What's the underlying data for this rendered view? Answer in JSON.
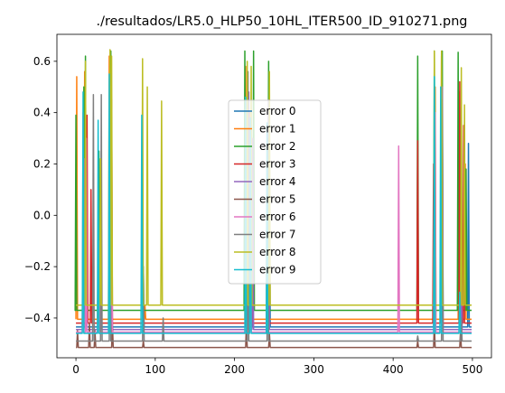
{
  "chart_data": {
    "type": "line",
    "title": "./resultados/LR5.0_HLP50_10HL_ITER500_ID_910271.png",
    "xlabel": "",
    "ylabel": "",
    "xlim": [
      -24,
      524
    ],
    "ylim": [
      -0.555,
      0.705
    ],
    "xticks": [
      0,
      100,
      200,
      300,
      400,
      500
    ],
    "yticks": [
      -0.4,
      -0.2,
      0.0,
      0.2,
      0.4,
      0.6
    ],
    "xtick_labels": [
      "0",
      "100",
      "200",
      "300",
      "400",
      "500"
    ],
    "ytick_labels": [
      "−0.4",
      "−0.2",
      "0.0",
      "0.2",
      "0.4",
      "0.6"
    ],
    "grid": false,
    "legend": "center",
    "series": [
      {
        "name": "error 0",
        "color": "#1f77b4",
        "baseline": -0.435,
        "spikes": [
          [
            9,
            0.02
          ],
          [
            13,
            -0.1
          ],
          [
            30,
            -0.15
          ],
          [
            44,
            0.3
          ],
          [
            85,
            -0.2
          ],
          [
            215,
            0.05
          ],
          [
            222,
            -0.3
          ],
          [
            244,
            0.1
          ],
          [
            452,
            -0.1
          ],
          [
            462,
            0.0
          ],
          [
            485,
            -0.2
          ],
          [
            495,
            0.28
          ]
        ]
      },
      {
        "name": "error 1",
        "color": "#ff7f0e",
        "baseline": -0.405,
        "spikes": [
          [
            1,
            0.54
          ],
          [
            11,
            0.56
          ],
          [
            28,
            -0.2
          ],
          [
            42,
            0.62
          ],
          [
            87,
            -0.35
          ],
          [
            214,
            0.58
          ],
          [
            219,
            0.4
          ],
          [
            241,
            0.2
          ],
          [
            453,
            0.5
          ],
          [
            461,
            0.62
          ],
          [
            483,
            0.48
          ],
          [
            491,
            0.2
          ]
        ]
      },
      {
        "name": "error 2",
        "color": "#2ca02c",
        "baseline": -0.37,
        "spikes": [
          [
            0,
            0.39
          ],
          [
            10,
            0.5
          ],
          [
            12,
            0.62
          ],
          [
            29,
            0.25
          ],
          [
            44,
            0.64
          ],
          [
            213,
            0.64
          ],
          [
            224,
            0.64
          ],
          [
            243,
            0.6
          ],
          [
            431,
            0.62
          ],
          [
            452,
            0.64
          ],
          [
            462,
            0.64
          ],
          [
            482,
            0.635
          ],
          [
            492,
            0.18
          ]
        ]
      },
      {
        "name": "error 3",
        "color": "#d62728",
        "baseline": -0.42,
        "spikes": [
          [
            14,
            0.39
          ],
          [
            19,
            0.1
          ],
          [
            30,
            -0.1
          ],
          [
            45,
            0.45
          ],
          [
            216,
            0.42
          ],
          [
            222,
            0.2
          ],
          [
            243,
            0.1
          ],
          [
            431,
            0.29
          ],
          [
            451,
            0.2
          ],
          [
            461,
            0.45
          ],
          [
            484,
            0.52
          ],
          [
            489,
            0.35
          ]
        ]
      },
      {
        "name": "error 4",
        "color": "#9467bd",
        "baseline": -0.445,
        "spikes": [
          [
            11,
            0.22
          ],
          [
            31,
            -0.2
          ],
          [
            44,
            0.5
          ],
          [
            218,
            0.48
          ],
          [
            223,
            0.3
          ],
          [
            243,
            0.45
          ],
          [
            462,
            0.5
          ],
          [
            486,
            0.42
          ]
        ]
      },
      {
        "name": "error 5",
        "color": "#8c564b",
        "baseline": -0.515,
        "spikes": [
          [
            2,
            -0.45
          ],
          [
            17,
            -0.42
          ],
          [
            24,
            -0.45
          ],
          [
            46,
            -0.42
          ],
          [
            85,
            -0.49
          ],
          [
            215,
            -0.42
          ],
          [
            244,
            -0.46
          ],
          [
            431,
            -0.49
          ],
          [
            452,
            -0.42
          ],
          [
            485,
            -0.45
          ]
        ]
      },
      {
        "name": "error 6",
        "color": "#e377c2",
        "baseline": -0.455,
        "spikes": [
          [
            9,
            0.4
          ],
          [
            13,
            0.3
          ],
          [
            30,
            -0.1
          ],
          [
            45,
            0.2
          ],
          [
            220,
            0.3
          ],
          [
            407,
            0.27
          ],
          [
            453,
            0.4
          ],
          [
            462,
            0.3
          ]
        ]
      },
      {
        "name": "error 7",
        "color": "#7f7f7f",
        "baseline": -0.49,
        "spikes": [
          [
            22,
            0.47
          ],
          [
            32,
            0.47
          ],
          [
            43,
            0.4
          ],
          [
            85,
            -0.2
          ],
          [
            110,
            -0.4
          ],
          [
            217,
            0.56
          ],
          [
            242,
            0.3
          ],
          [
            431,
            -0.47
          ],
          [
            462,
            0.45
          ],
          [
            486,
            -0.4
          ]
        ]
      },
      {
        "name": "error 8",
        "color": "#bcbd22",
        "baseline": -0.35,
        "spikes": [
          [
            12,
            0.6
          ],
          [
            31,
            0.22
          ],
          [
            43,
            0.645
          ],
          [
            45,
            0.62
          ],
          [
            84,
            0.61
          ],
          [
            90,
            0.5
          ],
          [
            108,
            0.445
          ],
          [
            216,
            0.6
          ],
          [
            221,
            0.58
          ],
          [
            244,
            0.56
          ],
          [
            452,
            0.64
          ],
          [
            461,
            0.64
          ],
          [
            486,
            0.575
          ],
          [
            490,
            0.43
          ]
        ]
      },
      {
        "name": "error 9",
        "color": "#17becf",
        "baseline": -0.46,
        "spikes": [
          [
            9,
            0.48
          ],
          [
            28,
            0.37
          ],
          [
            42,
            0.55
          ],
          [
            83,
            0.39
          ],
          [
            214,
            0.46
          ],
          [
            220,
            0.38
          ],
          [
            241,
            0.36
          ],
          [
            452,
            0.54
          ],
          [
            460,
            0.5
          ],
          [
            484,
            -0.3
          ]
        ]
      }
    ]
  }
}
